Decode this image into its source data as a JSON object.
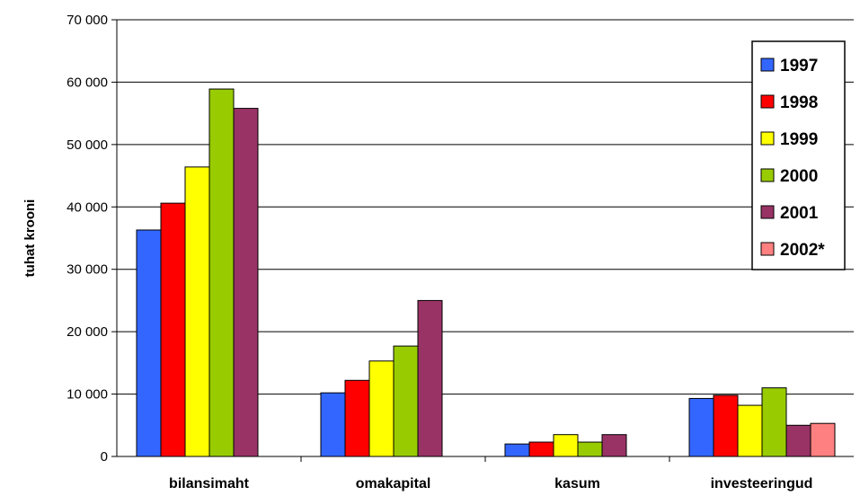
{
  "chart_data": {
    "type": "bar",
    "title": "",
    "xlabel": "",
    "ylabel": "tuhat krooni",
    "ylim": [
      0,
      70000
    ],
    "yticks": [
      0,
      10000,
      20000,
      30000,
      40000,
      50000,
      60000,
      70000
    ],
    "ytick_labels": [
      "0",
      "10 000",
      "20 000",
      "30 000",
      "40 000",
      "50 000",
      "60 000",
      "70 000"
    ],
    "grid": true,
    "legend_position": "top-right",
    "categories": [
      "bilansimaht",
      "omakapital",
      "kasum",
      "investeeringud"
    ],
    "series": [
      {
        "name": "1997",
        "color": "#3366ff",
        "values": [
          36300,
          10200,
          2000,
          9300
        ]
      },
      {
        "name": "1998",
        "color": "#ff0000",
        "values": [
          40600,
          12200,
          2300,
          9800
        ]
      },
      {
        "name": "1999",
        "color": "#ffff00",
        "values": [
          46400,
          15300,
          3500,
          8200
        ]
      },
      {
        "name": "2000",
        "color": "#99cc00",
        "values": [
          58900,
          17700,
          2300,
          11000
        ]
      },
      {
        "name": "2001",
        "color": "#993366",
        "values": [
          55800,
          25000,
          3500,
          5000
        ]
      },
      {
        "name": "2002*",
        "color": "#ff8080",
        "values": [
          null,
          null,
          null,
          5300
        ]
      }
    ]
  }
}
